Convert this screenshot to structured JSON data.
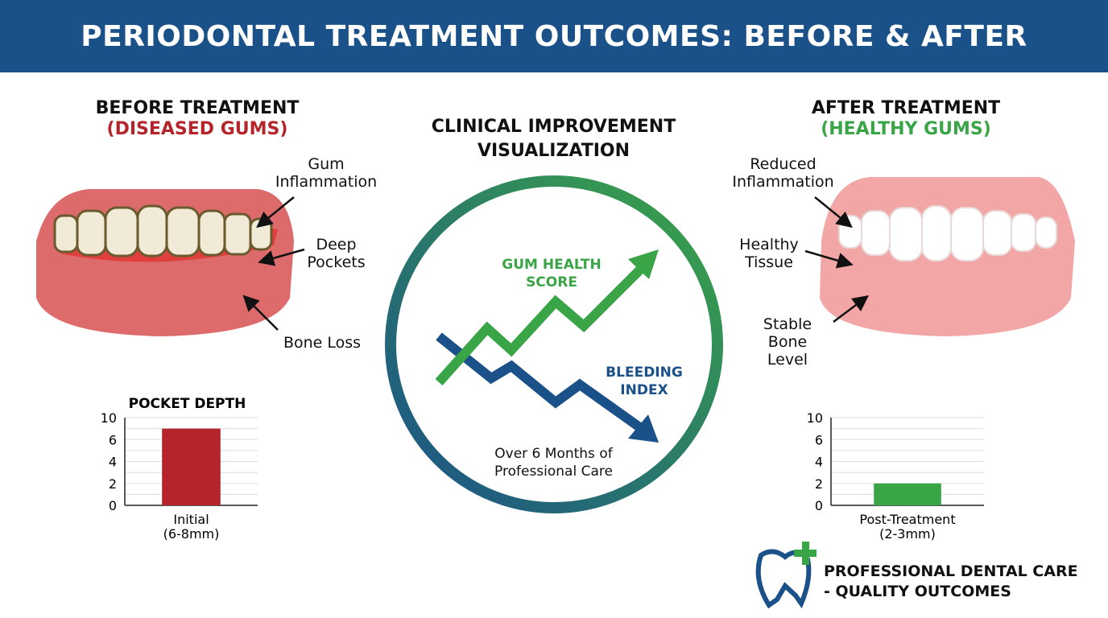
{
  "title": "PERIODONTAL TREATMENT OUTCOMES: BEFORE & AFTER",
  "before": {
    "heading": "BEFORE TREATMENT",
    "subheading": "(DISEASED GUMS)",
    "labels": [
      "Gum Inflammation",
      "Deep Pockets",
      "Bone Loss"
    ]
  },
  "center": {
    "heading_line1": "CLINICAL IMPROVEMENT",
    "heading_line2": "VISUALIZATION",
    "green_label_line1": "GUM HEALTH",
    "green_label_line2": "SCORE",
    "blue_label_line1": "BLEEDING",
    "blue_label_line2": "INDEX",
    "caption_line1": "Over 6 Months of",
    "caption_line2": "Professional Care"
  },
  "after": {
    "heading": "AFTER TREATMENT",
    "subheading": "(HEALTHY GUMS)",
    "labels": [
      "Reduced Inflammation",
      "Healthy Tissue",
      "Stable Bone Level"
    ]
  },
  "chart_data": [
    {
      "type": "bar",
      "title": "POCKET DEPTH",
      "categories": [
        "Initial (6-8mm)"
      ],
      "category_line1": "Initial",
      "category_line2": "(6-8mm)",
      "values": [
        7
      ],
      "ytick_labels": [
        "0",
        "2",
        "4",
        "6",
        "10"
      ],
      "ylim": [
        0,
        8
      ],
      "color": "#b5232b",
      "grid": true
    },
    {
      "type": "bar",
      "title": "",
      "categories": [
        "Post-Treatment (2-3mm)"
      ],
      "category_line1": "Post-Treatment",
      "category_line2": "(2-3mm)",
      "values": [
        2
      ],
      "ytick_labels": [
        "0",
        "2",
        "4",
        "6",
        "10"
      ],
      "ylim": [
        0,
        8
      ],
      "color": "#3aa547",
      "grid": true
    }
  ],
  "logo": {
    "line1": "PROFESSIONAL DENTAL CARE",
    "line2": "- QUALITY OUTCOMES"
  },
  "colors": {
    "banner": "#1b5189",
    "red": "#b5232b",
    "green": "#3aa547",
    "blue": "#1b5189"
  }
}
